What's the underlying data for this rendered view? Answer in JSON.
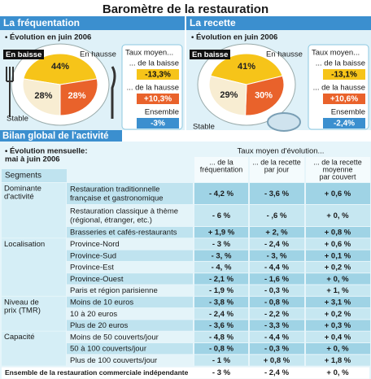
{
  "title": "Baromètre de la restauration",
  "panels": [
    {
      "title": "La fréquentation",
      "subtitle": "• Évolution en juin 2006",
      "pie": {
        "labels": [
          "En baisse",
          "En hausse",
          "Stable"
        ],
        "values": [
          44,
          28,
          28
        ],
        "value_labels": [
          "44%",
          "28%",
          "28%"
        ],
        "colors": [
          "#f6c419",
          "#e9622b",
          "#f8edd2"
        ]
      },
      "rates": {
        "title": "Taux moyen...",
        "items": [
          {
            "label": "... de la baisse",
            "value": "-13,3%"
          },
          {
            "label": "... de la hausse",
            "value": "+10,3%"
          },
          {
            "label": "Ensemble",
            "value": "-3%"
          }
        ]
      }
    },
    {
      "title": "La recette",
      "subtitle": "• Évolution en juin 2006",
      "pie": {
        "labels": [
          "En baisse",
          "En hausse",
          "Stable"
        ],
        "values": [
          41,
          30,
          29
        ],
        "value_labels": [
          "41%",
          "30%",
          "29%"
        ],
        "colors": [
          "#f6c419",
          "#e9622b",
          "#f8edd2"
        ]
      },
      "rates": {
        "title": "Taux moyen...",
        "items": [
          {
            "label": "... de la baisse",
            "value": "-13,1%"
          },
          {
            "label": "... de la hausse",
            "value": "+10,6%"
          },
          {
            "label": "Ensemble",
            "value": "-2,4%"
          }
        ]
      }
    }
  ],
  "section": "Bilan global de l'activité",
  "table": {
    "subtitle": [
      "• Évolution mensuelle:",
      "mai à juin 2006"
    ],
    "header": "Taux moyen d'évolution...",
    "columns": [
      [
        "... de la",
        "fréquentation"
      ],
      [
        "... de la recette",
        "par jour"
      ],
      [
        "... de la recette",
        "moyenne",
        "par couvert"
      ]
    ],
    "segments_label": "Segments",
    "groups": [
      {
        "label": [
          "Dominante",
          "d'activité"
        ],
        "rows": [
          {
            "name": [
              "Restauration traditionnelle",
              "française et gastronomique"
            ],
            "values": [
              "- 4,2 %",
              "- 3,6 %",
              "+ 0,6 %"
            ]
          },
          {
            "name": [
              "Restauration classique à thème",
              "(régional, étranger, etc.)"
            ],
            "values": [
              "- 6 %",
              "- ,6 %",
              "+ 0,  %"
            ]
          },
          {
            "name": [
              "Brasseries et cafés-restaurants"
            ],
            "values": [
              "+ 1,9 %",
              "+ 2,  %",
              "+ 0,8 %"
            ]
          }
        ]
      },
      {
        "label": [
          "Localisation"
        ],
        "rows": [
          {
            "name": [
              "Province-Nord"
            ],
            "values": [
              "- 3 %",
              "- 2,4 %",
              "+ 0,6 %"
            ]
          },
          {
            "name": [
              "Province-Sud"
            ],
            "values": [
              "- 3,  %",
              "- 3,  %",
              "+ 0,1 %"
            ]
          },
          {
            "name": [
              "Province-Est"
            ],
            "values": [
              "- 4,  %",
              "- 4,4 %",
              "+ 0,2 %"
            ]
          },
          {
            "name": [
              "Province-Ouest"
            ],
            "values": [
              "- 2,1 %",
              "- 1,6 %",
              "+ 0,  %"
            ]
          },
          {
            "name": [
              "Paris et région parisienne"
            ],
            "values": [
              "- 1,9 %",
              "- 0,3 %",
              "+ 1,  %"
            ]
          }
        ]
      },
      {
        "label": [
          "Niveau de",
          "prix (TMR)"
        ],
        "rows": [
          {
            "name": [
              "Moins de 10 euros"
            ],
            "values": [
              "- 3,8 %",
              "- 0,8 %",
              "+ 3,1 %"
            ]
          },
          {
            "name": [
              "10 à 20 euros"
            ],
            "values": [
              "- 2,4 %",
              "- 2,2 %",
              "+ 0,2 %"
            ]
          },
          {
            "name": [
              "Plus de 20 euros"
            ],
            "values": [
              "- 3,6 %",
              "- 3,3 %",
              "+ 0,3 %"
            ]
          }
        ]
      },
      {
        "label": [
          "Capacité"
        ],
        "rows": [
          {
            "name": [
              "Moins de 50 couverts/jour"
            ],
            "values": [
              "- 4,8 %",
              "- 4,4 %",
              "+ 0,4 %"
            ]
          },
          {
            "name": [
              "50 à 100 couverts/jour"
            ],
            "values": [
              "- 0,8 %",
              "- 0,3 %",
              "+ 0,  %"
            ]
          },
          {
            "name": [
              "Plus de 100 couverts/jour"
            ],
            "values": [
              "- 1 %",
              "+ 0,8 %",
              "+ 1,8 %"
            ]
          }
        ]
      }
    ],
    "total": {
      "name": "Ensemble de la restauration commerciale indépendante",
      "values": [
        "- 3 %",
        "- 2,4 %",
        "+ 0,  %"
      ]
    }
  }
}
